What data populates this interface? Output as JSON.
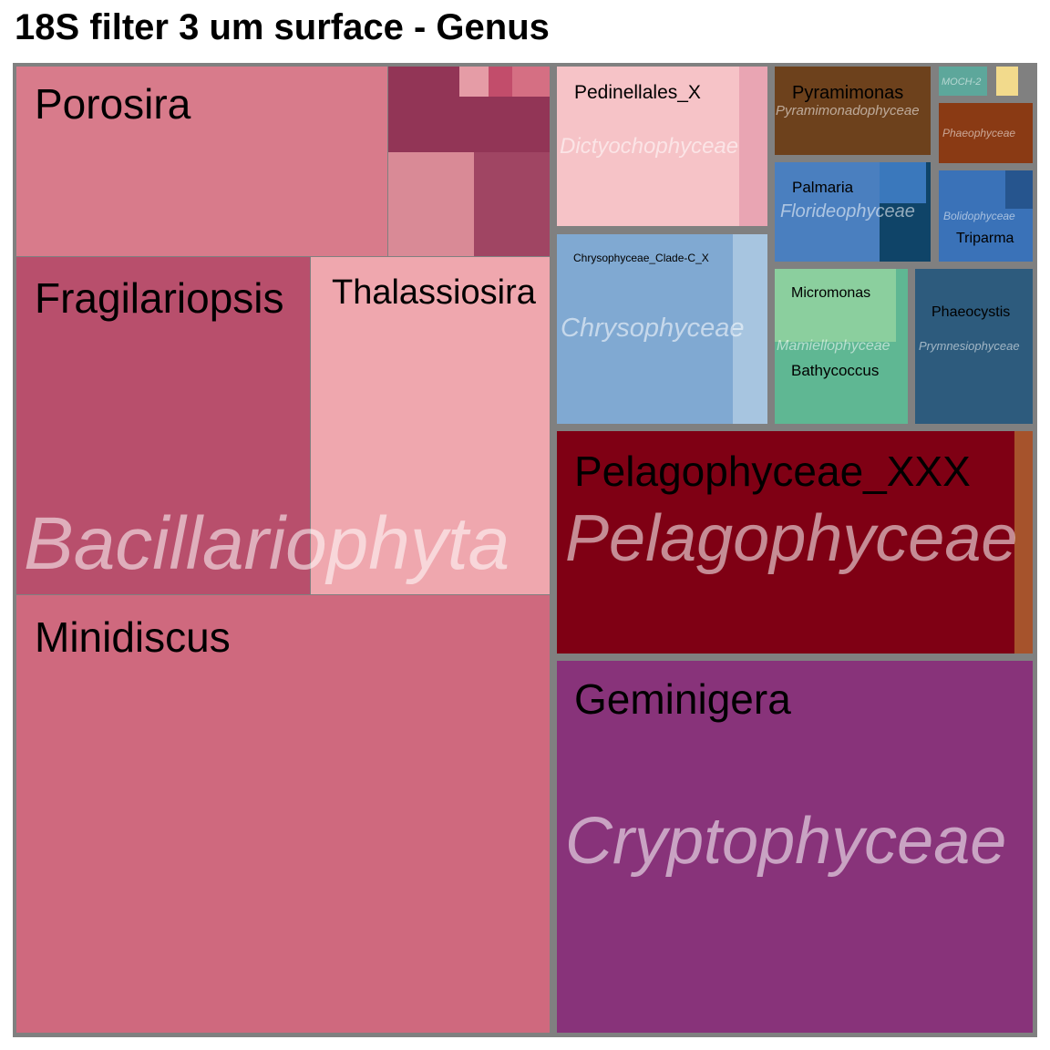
{
  "title": "18S filter 3 um surface - Genus",
  "chart_data": {
    "type": "treemap",
    "title": "18S filter 3 um surface - Genus",
    "groups": [
      {
        "name": "Bacillariophyta",
        "color": "#c0506e",
        "genera": [
          "Porosira",
          "Fragilariopsis",
          "Thalassiosira",
          "Minidiscus"
        ]
      },
      {
        "name": "Pelagophyceae",
        "color": "#7f0014",
        "genera": [
          "Pelagophyceae_XXX"
        ]
      },
      {
        "name": "Cryptophyceae",
        "color": "#88337a",
        "genera": [
          "Geminigera"
        ]
      },
      {
        "name": "Dictyochophyceae",
        "color": "#f6c3c7",
        "genera": [
          "Pedinellales_X"
        ]
      },
      {
        "name": "Chrysophyceae",
        "color": "#80a9d2",
        "genera": [
          "Chrysophyceae_Clade-C_X"
        ]
      },
      {
        "name": "Pyramimonadophyceae",
        "color": "#6d411c",
        "genera": [
          "Pyramimonas"
        ]
      },
      {
        "name": "Florideophyceae",
        "color": "#4a7fbf",
        "genera": [
          "Palmaria"
        ]
      },
      {
        "name": "Mamiellophyceae",
        "color": "#8bcf9e",
        "genera": [
          "Micromonas",
          "Bathycoccus"
        ]
      },
      {
        "name": "Prymnesiophyceae",
        "color": "#2d5b7d",
        "genera": [
          "Phaeocystis"
        ]
      },
      {
        "name": "MOCH-2",
        "color": "#5da79b",
        "genera": []
      },
      {
        "name": "Phaeophyceae",
        "color": "#8a3a14",
        "genera": []
      },
      {
        "name": "Bolidophyceae",
        "color": "#3a72b8",
        "genera": [
          "Triparma"
        ]
      }
    ]
  }
}
